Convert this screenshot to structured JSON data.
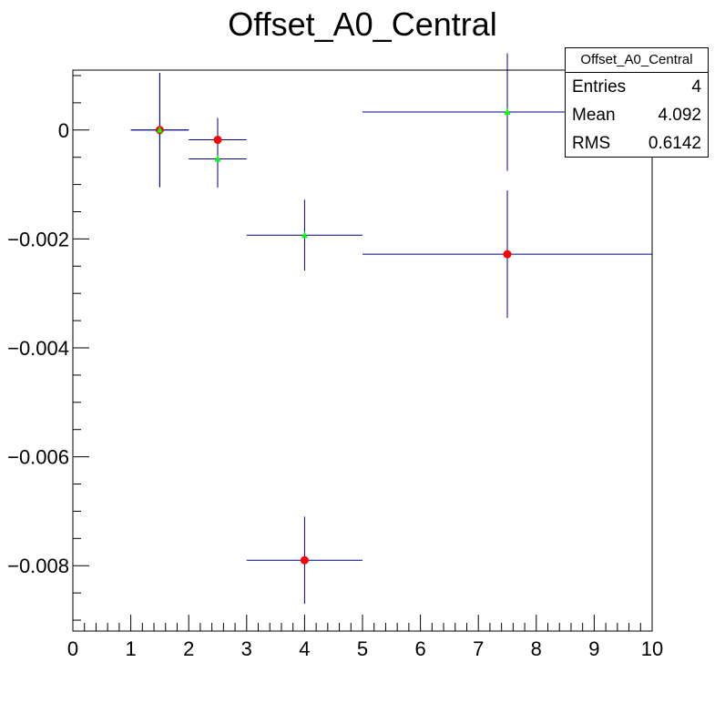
{
  "chart_data": {
    "type": "scatter",
    "title": "Offset_A0_Central",
    "xlabel": "",
    "ylabel": "",
    "xlim": [
      0,
      10
    ],
    "ylim": [
      -0.0092,
      0.0011
    ],
    "x_ticks": [
      0,
      1,
      2,
      3,
      4,
      5,
      6,
      7,
      8,
      9,
      10
    ],
    "x_tick_labels": [
      "0",
      "1",
      "2",
      "3",
      "4",
      "5",
      "6",
      "7",
      "8",
      "9",
      "10"
    ],
    "y_ticks": [
      0,
      -0.002,
      -0.004,
      -0.006,
      -0.008
    ],
    "y_tick_labels": [
      "0",
      "−0.002",
      "−0.004",
      "−0.006",
      "−0.008"
    ],
    "series": [
      {
        "marker": "circle",
        "color": "#ff0000",
        "points": [
          {
            "x": 1.5,
            "y": 0.0,
            "xerr": 0.5,
            "yerr": 0.00105
          },
          {
            "x": 2.5,
            "y": -0.00018,
            "xerr": 0.5,
            "yerr": 0.0004
          },
          {
            "x": 4.0,
            "y": -0.0079,
            "xerr": 1.0,
            "yerr": 0.0008
          },
          {
            "x": 7.5,
            "y": -0.00228,
            "xerr": 2.5,
            "yerr": 0.00117
          }
        ]
      },
      {
        "marker": "triangle",
        "color": "#00ff00",
        "points": [
          {
            "x": 1.5,
            "y": 0.0,
            "xerr": 0.5,
            "yerr": 0.00105
          },
          {
            "x": 2.5,
            "y": -0.00053,
            "xerr": 0.5,
            "yerr": 0.00053
          },
          {
            "x": 4.0,
            "y": -0.00193,
            "xerr": 1.0,
            "yerr": 0.00065
          },
          {
            "x": 7.5,
            "y": 0.00033,
            "xerr": 2.5,
            "yerr": 0.00108
          }
        ]
      }
    ],
    "errorbar_color": "#000080"
  },
  "stats": {
    "title": "Offset_A0_Central",
    "entries_label": "Entries",
    "entries_value": "4",
    "mean_label": "Mean",
    "mean_value": "4.092",
    "rms_label": "RMS",
    "rms_value": "0.6142"
  }
}
